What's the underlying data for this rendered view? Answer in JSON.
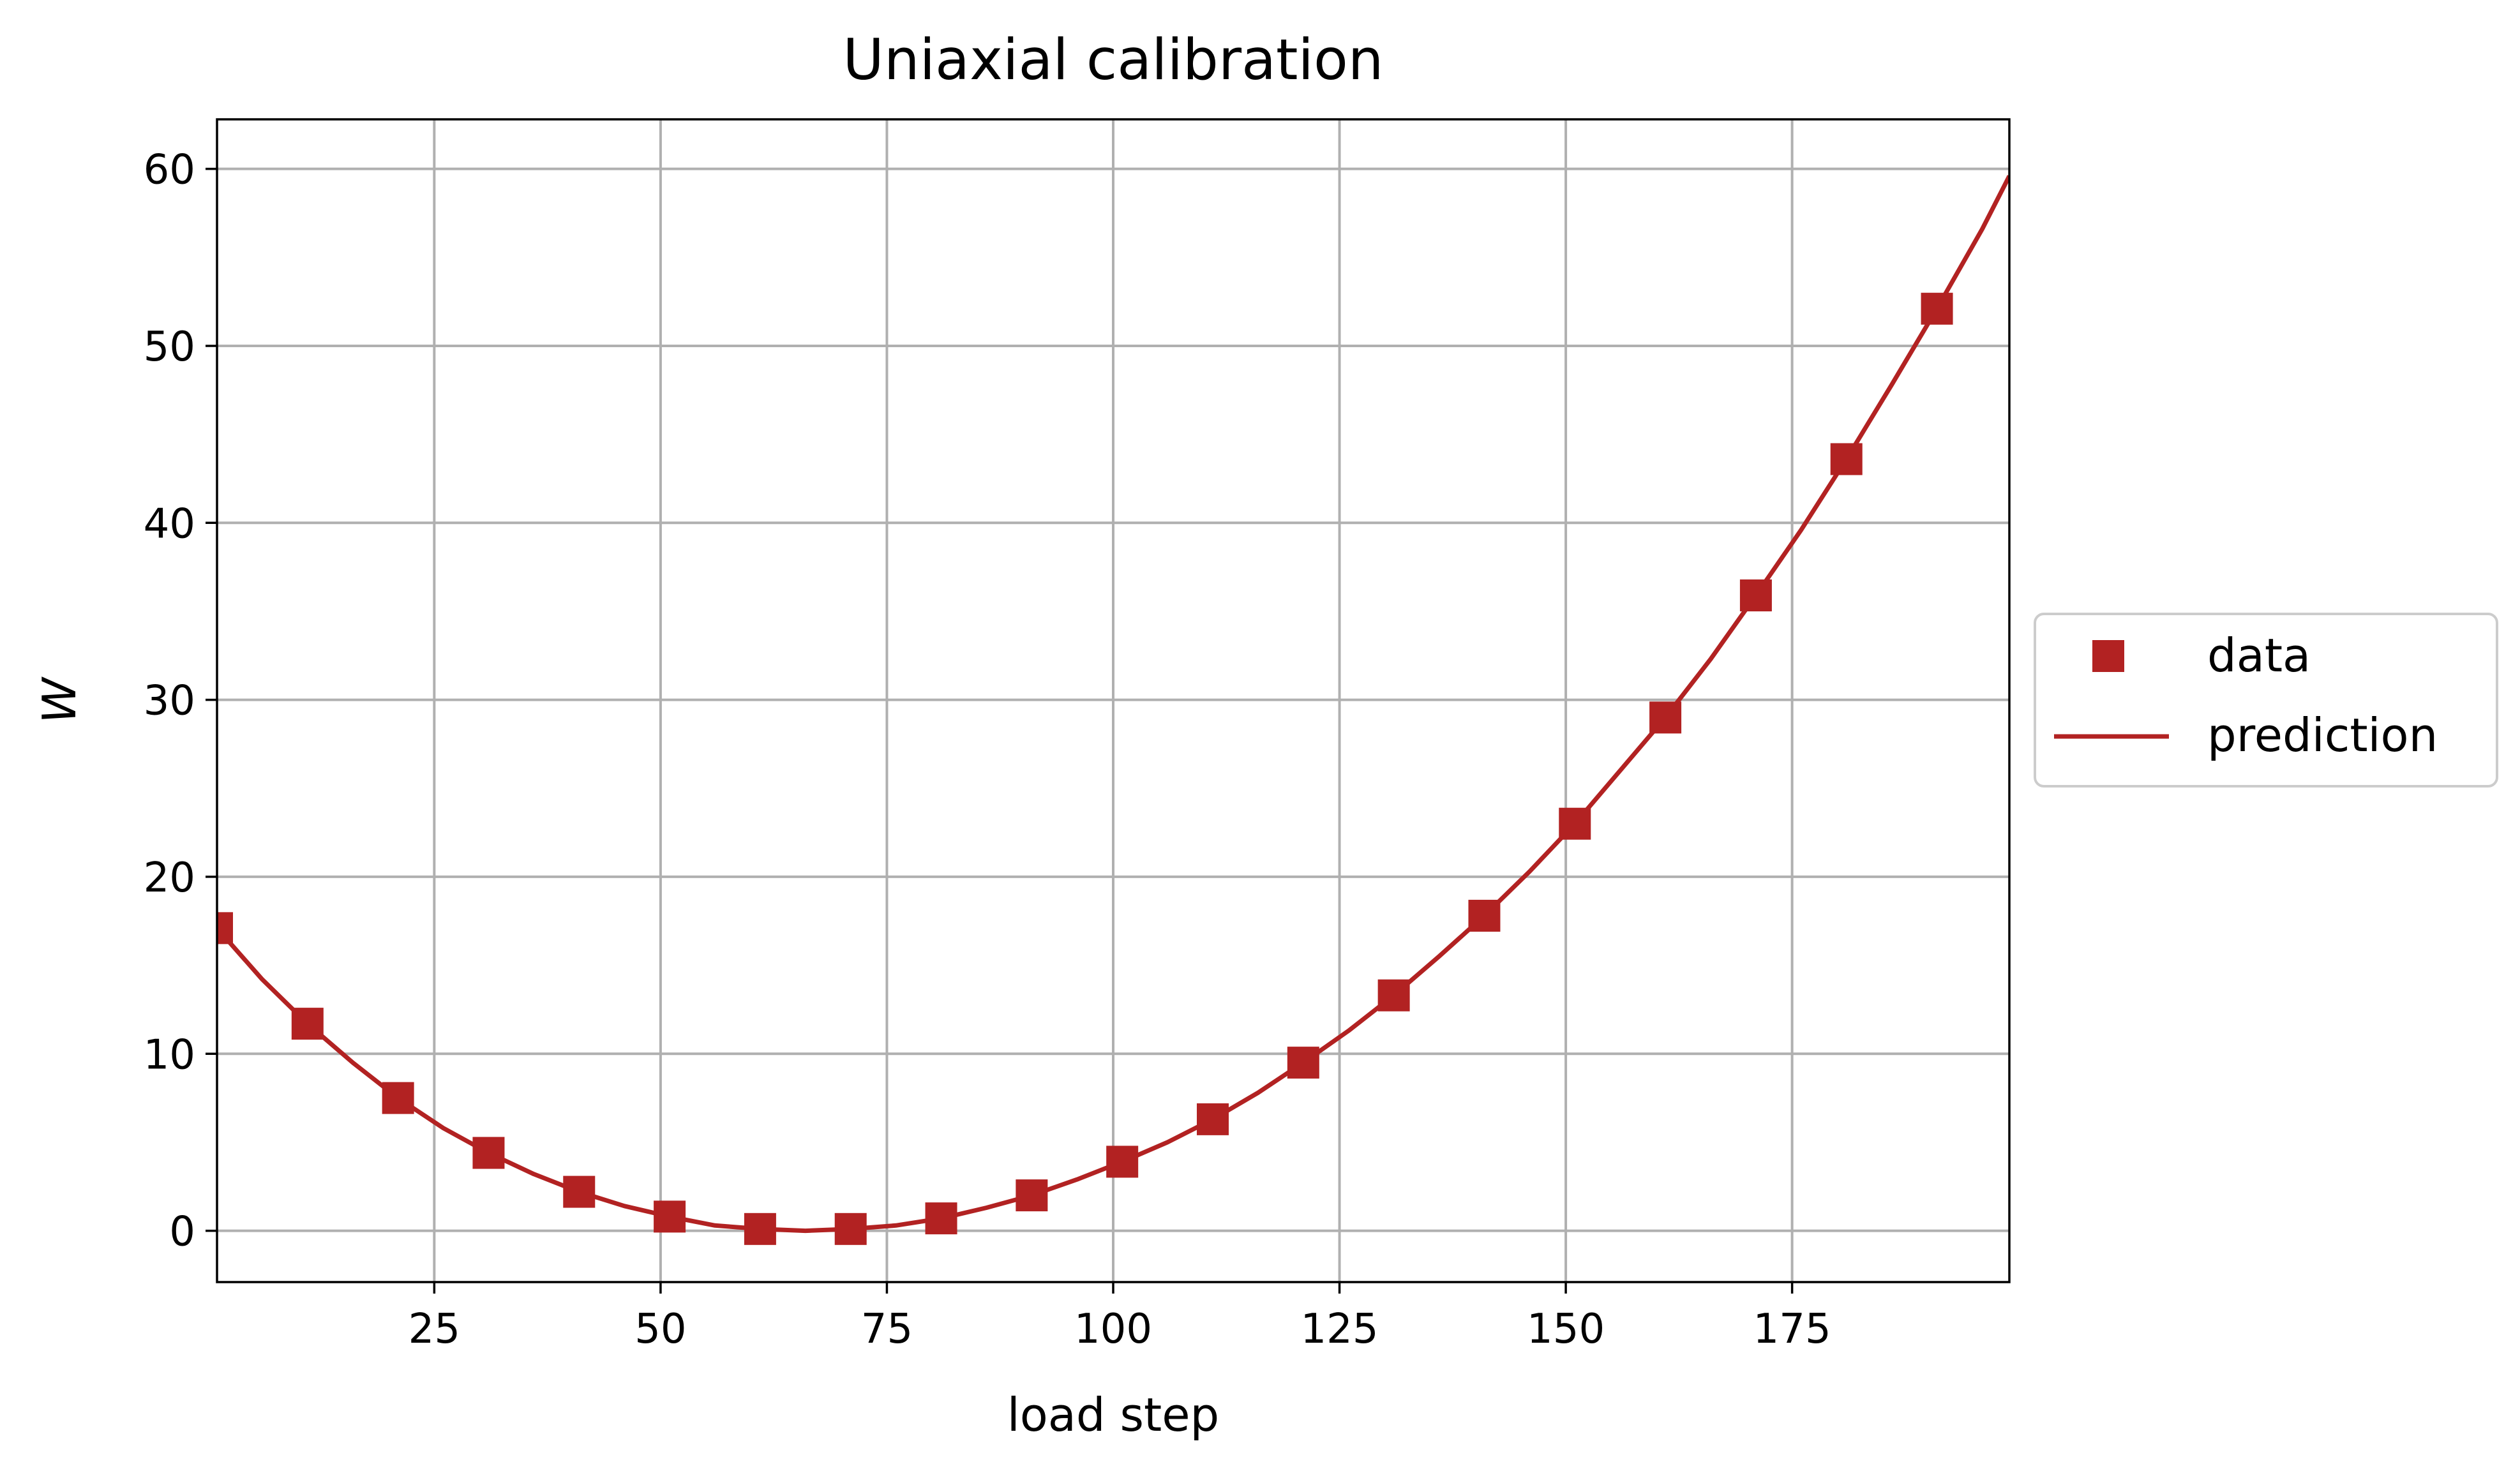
{
  "chart_data": {
    "type": "line",
    "title": "Uniaxial calibration",
    "xlabel": "load step",
    "ylabel": "W",
    "xlim": [
      1,
      199
    ],
    "ylim": [
      -2.9,
      62.8
    ],
    "x_ticks": [
      25,
      50,
      75,
      100,
      125,
      150,
      175
    ],
    "y_ticks": [
      0,
      10,
      20,
      30,
      40,
      50,
      60
    ],
    "grid": true,
    "legend_position": "outside-right",
    "color": "#b22222",
    "series": [
      {
        "name": "data",
        "marker": "square",
        "x": [
          1,
          11,
          21,
          31,
          41,
          51,
          61,
          71,
          81,
          91,
          101,
          111,
          121,
          131,
          141,
          151,
          161,
          171,
          181,
          191
        ],
        "y": [
          17.1,
          11.7,
          7.5,
          4.4,
          2.2,
          0.8,
          0.1,
          0.1,
          0.7,
          2.0,
          3.9,
          6.3,
          9.5,
          13.3,
          17.8,
          23.0,
          29.0,
          35.9,
          43.6,
          52.1
        ]
      },
      {
        "name": "prediction",
        "marker": "line",
        "x": [
          1,
          6,
          11,
          16,
          21,
          26,
          31,
          36,
          41,
          46,
          51,
          56,
          61,
          66,
          71,
          76,
          81,
          86,
          91,
          96,
          101,
          106,
          111,
          116,
          121,
          126,
          131,
          136,
          141,
          146,
          151,
          156,
          161,
          166,
          171,
          176,
          181,
          186,
          191,
          196,
          199
        ],
        "y": [
          17.1,
          14.2,
          11.7,
          9.5,
          7.5,
          5.8,
          4.4,
          3.2,
          2.2,
          1.4,
          0.8,
          0.3,
          0.1,
          0.0,
          0.1,
          0.3,
          0.7,
          1.3,
          2.0,
          2.9,
          3.9,
          5.0,
          6.3,
          7.8,
          9.5,
          11.3,
          13.3,
          15.5,
          17.8,
          20.3,
          23.0,
          26.0,
          29.0,
          32.3,
          35.9,
          39.6,
          43.6,
          47.8,
          52.1,
          56.6,
          59.6
        ]
      }
    ]
  }
}
